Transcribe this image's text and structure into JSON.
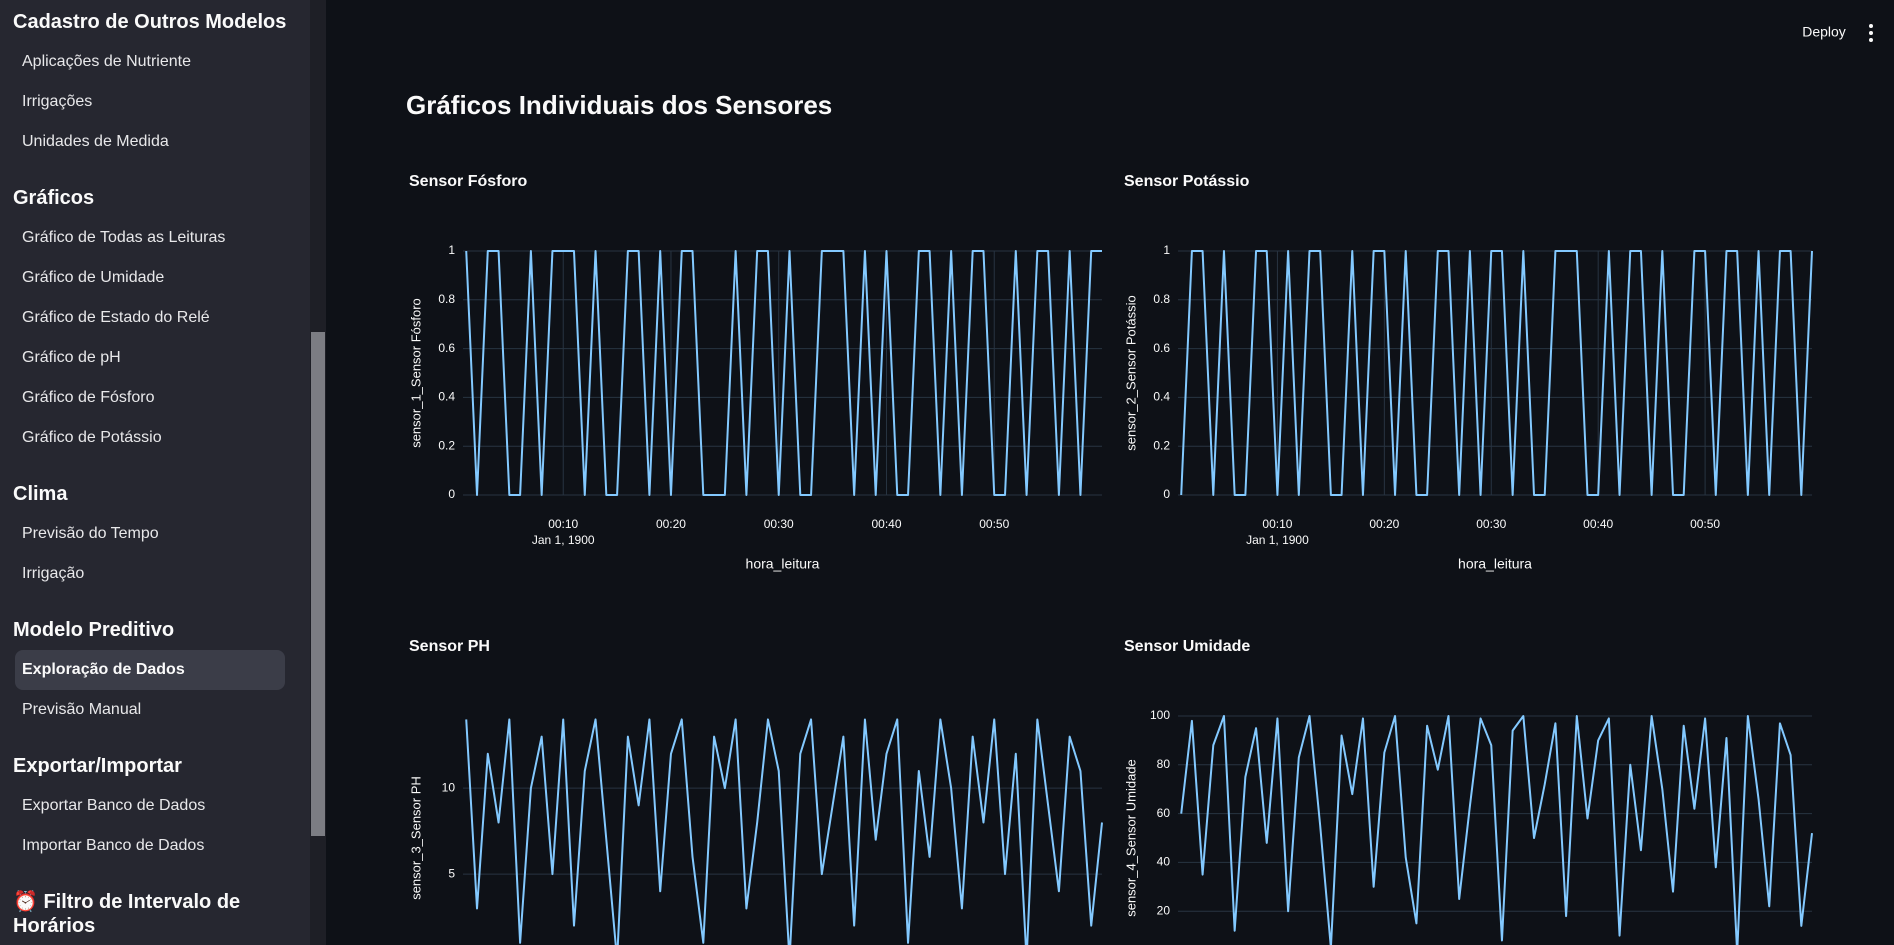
{
  "sidebar": {
    "sections": [
      {
        "title": "Cadastro de Outros Modelos",
        "items": [
          "Aplicações de Nutriente",
          "Irrigações",
          "Unidades de Medida"
        ]
      },
      {
        "title": "Gráficos",
        "items": [
          "Gráfico de Todas as Leituras",
          "Gráfico de Umidade",
          "Gráfico de Estado do Relé",
          "Gráfico de pH",
          "Gráfico de Fósforo",
          "Gráfico de Potássio"
        ]
      },
      {
        "title": "Clima",
        "items": [
          "Previsão do Tempo",
          "Irrigação"
        ]
      },
      {
        "title": "Modelo Preditivo",
        "items": [
          "Exploração de Dados",
          "Previsão Manual"
        ]
      },
      {
        "title": "Exportar/Importar",
        "items": [
          "Exportar Banco de Dados",
          "Importar Banco de Dados"
        ]
      },
      {
        "title": "⏰ Filtro de Intervalo de Horários",
        "items": []
      }
    ]
  },
  "header": {
    "deploy": "Deploy"
  },
  "title": "Gráficos Individuais dos Sensores",
  "chart_data": [
    {
      "type": "line",
      "title": "Sensor Fósforo",
      "x_label": "hora_leitura",
      "y_label": "sensor_1_Sensor Fósforo",
      "x_date_label": "Jan 1, 1900",
      "color": "#83c9ff",
      "grid": true,
      "x": [
        1,
        2,
        3,
        4,
        5,
        6,
        7,
        8,
        9,
        10,
        11,
        12,
        13,
        14,
        15,
        16,
        17,
        18,
        19,
        20,
        21,
        22,
        23,
        24,
        25,
        26,
        27,
        28,
        29,
        30,
        31,
        32,
        33,
        34,
        35,
        36,
        37,
        38,
        39,
        40,
        41,
        42,
        43,
        44,
        45,
        46,
        47,
        48,
        49,
        50,
        51,
        52,
        53,
        54,
        55,
        56,
        57,
        58,
        59,
        60
      ],
      "values": [
        1,
        0,
        1,
        1,
        0,
        0,
        1,
        0,
        1,
        1,
        1,
        0,
        1,
        0,
        0,
        1,
        1,
        0,
        1,
        0,
        1,
        1,
        0,
        0,
        0,
        1,
        0,
        1,
        1,
        0,
        1,
        0,
        0,
        1,
        1,
        1,
        0,
        1,
        0,
        1,
        0,
        0,
        1,
        1,
        0,
        1,
        0,
        1,
        1,
        0,
        0,
        1,
        0,
        1,
        1,
        0,
        1,
        0,
        1,
        1
      ],
      "xlim": [
        0.7,
        60
      ],
      "xticks": [
        {
          "value": 10,
          "label": "00:10"
        },
        {
          "value": 20,
          "label": "00:20"
        },
        {
          "value": 30,
          "label": "00:30"
        },
        {
          "value": 40,
          "label": "00:40"
        },
        {
          "value": 50,
          "label": "00:50"
        }
      ],
      "ylim": [
        0,
        1
      ],
      "yticks": [
        0,
        0.2,
        0.4,
        0.6,
        0.8,
        1
      ]
    },
    {
      "type": "line",
      "title": "Sensor Potássio",
      "x_label": "hora_leitura",
      "y_label": "sensor_2_Sensor Potássio",
      "x_date_label": "Jan 1, 1900",
      "color": "#83c9ff",
      "grid": true,
      "x": [
        1,
        2,
        3,
        4,
        5,
        6,
        7,
        8,
        9,
        10,
        11,
        12,
        13,
        14,
        15,
        16,
        17,
        18,
        19,
        20,
        21,
        22,
        23,
        24,
        25,
        26,
        27,
        28,
        29,
        30,
        31,
        32,
        33,
        34,
        35,
        36,
        37,
        38,
        39,
        40,
        41,
        42,
        43,
        44,
        45,
        46,
        47,
        48,
        49,
        50,
        51,
        52,
        53,
        54,
        55,
        56,
        57,
        58,
        59,
        60
      ],
      "values": [
        0,
        1,
        1,
        0,
        1,
        0,
        0,
        1,
        1,
        0,
        1,
        0,
        1,
        1,
        0,
        0,
        1,
        0,
        1,
        1,
        0,
        1,
        0,
        0,
        1,
        1,
        0,
        1,
        0,
        1,
        1,
        0,
        1,
        0,
        0,
        1,
        1,
        1,
        0,
        0,
        1,
        0,
        1,
        1,
        0,
        1,
        0,
        0,
        1,
        1,
        0,
        1,
        1,
        0,
        1,
        0,
        1,
        1,
        0,
        1
      ],
      "xlim": [
        0.7,
        60
      ],
      "xticks": [
        {
          "value": 10,
          "label": "00:10"
        },
        {
          "value": 20,
          "label": "00:20"
        },
        {
          "value": 30,
          "label": "00:30"
        },
        {
          "value": 40,
          "label": "00:40"
        },
        {
          "value": 50,
          "label": "00:50"
        }
      ],
      "ylim": [
        0,
        1
      ],
      "yticks": [
        0,
        0.2,
        0.4,
        0.6,
        0.8,
        1
      ]
    },
    {
      "type": "line",
      "title": "Sensor PH",
      "y_label": "sensor_3_Sensor PH",
      "color": "#83c9ff",
      "grid": true,
      "x": [
        1,
        2,
        3,
        4,
        5,
        6,
        7,
        8,
        9,
        10,
        11,
        12,
        13,
        14,
        15,
        16,
        17,
        18,
        19,
        20,
        21,
        22,
        23,
        24,
        25,
        26,
        27,
        28,
        29,
        30,
        31,
        32,
        33,
        34,
        35,
        36,
        37,
        38,
        39,
        40,
        41,
        42,
        43,
        44,
        45,
        46,
        47,
        48,
        49,
        50,
        51,
        52,
        53,
        54,
        55,
        56,
        57,
        58,
        59,
        60
      ],
      "values": [
        14,
        3,
        12,
        8,
        14,
        1,
        10,
        13,
        5,
        14,
        2,
        11,
        14,
        7,
        0,
        13,
        9,
        14,
        4,
        12,
        14,
        6,
        1,
        13,
        10,
        14,
        3,
        8,
        14,
        11,
        0,
        12,
        14,
        5,
        9,
        13,
        2,
        14,
        7,
        12,
        14,
        1,
        11,
        6,
        14,
        10,
        3,
        13,
        8,
        14,
        5,
        12,
        0,
        14,
        9,
        4,
        13,
        11,
        2,
        8
      ],
      "xlim": [
        0.7,
        60
      ],
      "ylim": [
        0,
        14.2
      ],
      "yticks": [
        5,
        10
      ]
    },
    {
      "type": "line",
      "title": "Sensor Umidade",
      "y_label": "sensor_4_Sensor Umidade",
      "color": "#83c9ff",
      "grid": true,
      "x": [
        1,
        2,
        3,
        4,
        5,
        6,
        7,
        8,
        9,
        10,
        11,
        12,
        13,
        14,
        15,
        16,
        17,
        18,
        19,
        20,
        21,
        22,
        23,
        24,
        25,
        26,
        27,
        28,
        29,
        30,
        31,
        32,
        33,
        34,
        35,
        36,
        37,
        38,
        39,
        40,
        41,
        42,
        43,
        44,
        45,
        46,
        47,
        48,
        49,
        50,
        51,
        52,
        53,
        54,
        55,
        56,
        57,
        58,
        59,
        60
      ],
      "values": [
        60,
        98,
        35,
        88,
        100,
        12,
        75,
        95,
        48,
        99,
        20,
        83,
        100,
        55,
        5,
        92,
        68,
        99,
        30,
        85,
        100,
        42,
        15,
        96,
        78,
        100,
        25,
        63,
        99,
        88,
        8,
        94,
        100,
        50,
        72,
        97,
        18,
        100,
        58,
        90,
        99,
        10,
        80,
        45,
        100,
        70,
        28,
        96,
        62,
        99,
        38,
        91,
        3,
        100,
        66,
        22,
        97,
        84,
        14,
        52
      ],
      "xlim": [
        0.7,
        60
      ],
      "ylim": [
        0,
        100
      ],
      "yticks": [
        20,
        40,
        60,
        80,
        100
      ]
    }
  ]
}
